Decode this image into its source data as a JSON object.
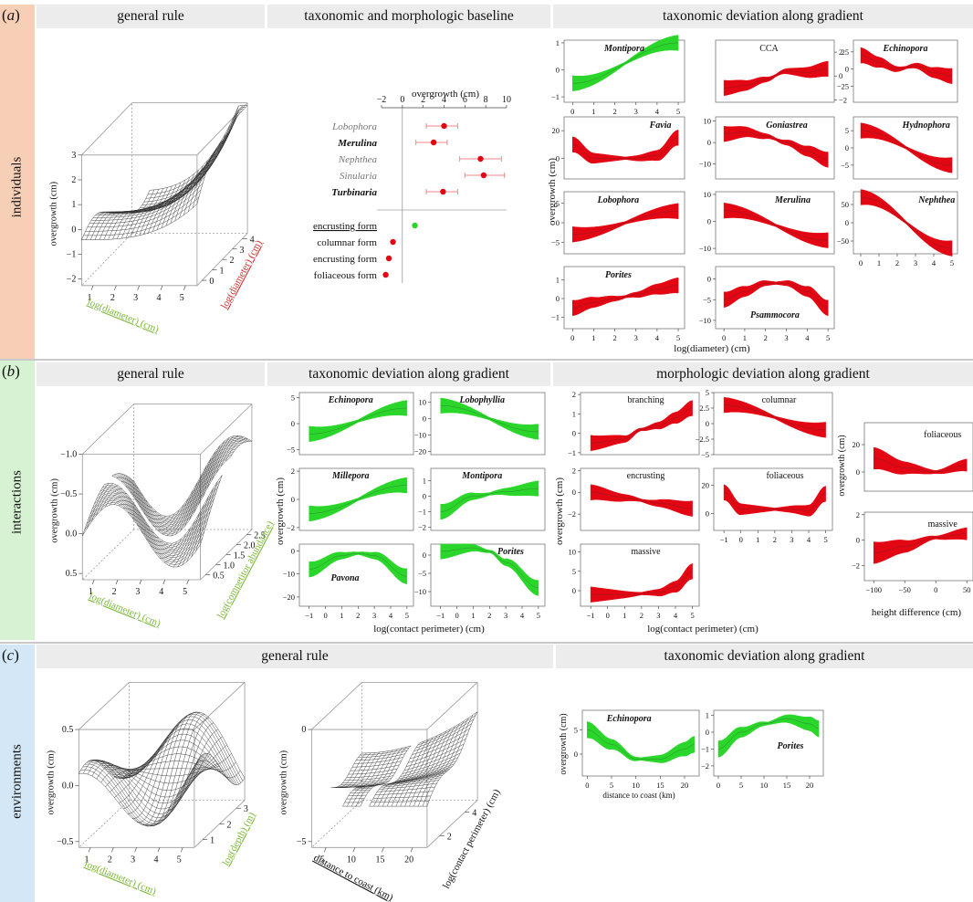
{
  "colors": {
    "panel_a": "#f6cfb6",
    "panel_b": "#d6f2d2",
    "panel_c": "#d3e7f6",
    "red": "#e30613",
    "green": "#2bd62b",
    "axis_green": "#7cb83a",
    "axis_red": "#cc2f2f"
  },
  "panels": {
    "a": {
      "label": "a",
      "row_title": "individuals",
      "headers": [
        "general rule",
        "taxonomic and morphologic baseline",
        "taxonomic deviation along gradient"
      ]
    },
    "b": {
      "label": "b",
      "row_title": "interactions",
      "headers": [
        "general rule",
        "taxonomic deviation along gradient",
        "morphologic deviation along gradient"
      ]
    },
    "c": {
      "label": "c",
      "row_title": "environments",
      "headers": [
        "general rule",
        "taxonomic deviation along gradient"
      ]
    }
  },
  "surfaces": {
    "a": {
      "z_label": "overgrowth (cm)",
      "x_label": "log(diameter) (cm)",
      "y_label": "log(diameter) (cm)",
      "z_ticks": [
        "3",
        "2",
        "1",
        "0",
        "−1",
        "−2"
      ],
      "x_ticks": [
        "1",
        "2",
        "3",
        "4",
        "5"
      ],
      "y_ticks": [
        "0",
        "1",
        "2",
        "3",
        "4"
      ]
    },
    "b": {
      "z_label": "overgrowth (cm)",
      "x_label": "log(diameter) (cm)",
      "y_label": "log(competitor abundance)",
      "z_ticks": [
        "−1.0",
        "−0.5",
        "0.0",
        "0.5"
      ],
      "x_ticks": [
        "1",
        "2",
        "3",
        "4",
        "5"
      ],
      "y_ticks": [
        "0.5",
        "1.0",
        "1.5",
        "2.0",
        "2.5"
      ]
    },
    "c1": {
      "z_label": "overgrowth (cm)",
      "x_label": "log(diameter) (cm)",
      "y_label": "log(depth) (m)",
      "z_ticks": [
        "0.5",
        "0.0",
        "−0.5"
      ],
      "x_ticks": [
        "1",
        "2",
        "3",
        "4",
        "5"
      ],
      "y_ticks": [
        "1",
        "2",
        "3"
      ]
    },
    "c2": {
      "z_label": "overgrowth (cm)",
      "x_label": "distance to coast (km)",
      "y_label": "log(contact perimeter) (cm)",
      "z_ticks": [
        "0",
        "−5"
      ],
      "x_ticks": [
        "5",
        "10",
        "15",
        "20"
      ],
      "y_ticks": [
        "2",
        "4"
      ]
    }
  },
  "baseline": {
    "xlabel": "overgrowth (cm)",
    "x_ticks": [
      "−2",
      "0",
      "2",
      "4",
      "6",
      "8",
      "10"
    ],
    "taxa": [
      {
        "label": "Lobophora",
        "value": 4,
        "lo": 2.3,
        "hi": 5.3,
        "style": "italic-gray"
      },
      {
        "label": "Merulina",
        "value": 3,
        "lo": 1.3,
        "hi": 4.3,
        "style": "italic-bold"
      },
      {
        "label": "Nephthea",
        "value": 7.5,
        "lo": 5.5,
        "hi": 9.5,
        "style": "italic-gray"
      },
      {
        "label": "Sinularia",
        "value": 7.8,
        "lo": 6.0,
        "hi": 9.8,
        "style": "italic-gray"
      },
      {
        "label": "Turbinaria",
        "value": 3.9,
        "lo": 2.3,
        "hi": 5.3,
        "style": "italic-bold"
      }
    ],
    "forms": [
      {
        "label": "encrusting form",
        "value": 1.2,
        "color": "green"
      },
      {
        "label": "columnar form",
        "value": -0.9,
        "color": "red"
      },
      {
        "label": "encrusting form",
        "value": -1.3,
        "color": "red"
      },
      {
        "label": "foliaceous form",
        "value": -1.6,
        "color": "red"
      }
    ]
  },
  "chart_data": [
    {
      "type": "area",
      "title": "individuals: taxonomic deviation along gradient",
      "xlabel": "log(diameter) (cm)",
      "ylabel": "overgrowth (cm)",
      "series": [
        {
          "name": "Montipora",
          "x": [
            0,
            5
          ],
          "y": [
            -0.5,
            1.0
          ],
          "ylim": [
            -1.2,
            1.1
          ]
        },
        {
          "name": "CCA",
          "x": [
            0,
            1,
            2,
            3,
            4,
            5
          ],
          "y": [
            -1.0,
            -0.8,
            -0.3,
            0.4,
            0.3,
            0.6
          ],
          "ylim": [
            -2.2,
            3.0
          ]
        },
        {
          "name": "Echinopora",
          "x": [
            0,
            1,
            2,
            3,
            4,
            5
          ],
          "y": [
            20,
            10,
            0,
            5,
            -5,
            -10
          ],
          "ylim": [
            -48,
            42
          ]
        },
        {
          "name": "Favia",
          "x": [
            0,
            1,
            2,
            3,
            4,
            5
          ],
          "y": [
            10,
            0,
            0,
            0,
            2,
            15
          ],
          "ylim": [
            -15,
            30
          ]
        },
        {
          "name": "Goniastrea",
          "x": [
            0,
            1,
            2,
            3,
            4,
            5
          ],
          "y": [
            4,
            5,
            3,
            0,
            -4,
            -8
          ],
          "ylim": [
            -17,
            12
          ]
        },
        {
          "name": "Hydnophora",
          "x": [
            0,
            5
          ],
          "y": [
            5,
            -5
          ],
          "ylim": [
            -9,
            9
          ]
        },
        {
          "name": "Lobophora",
          "x": [
            0,
            5
          ],
          "y": [
            -3,
            3
          ],
          "ylim": [
            -8,
            8
          ]
        },
        {
          "name": "Merulina",
          "x": [
            0,
            5
          ],
          "y": [
            4,
            -7
          ],
          "ylim": [
            -12,
            11
          ]
        },
        {
          "name": "Nephthea",
          "x": [
            0,
            5
          ],
          "y": [
            70,
            -70
          ],
          "ylim": [
            -85,
            85
          ]
        },
        {
          "name": "Porites",
          "x": [
            0,
            1,
            2,
            3,
            4,
            5
          ],
          "y": [
            -0.5,
            -0.2,
            0.0,
            0.2,
            0.5,
            0.7
          ],
          "ylim": [
            -1.6,
            1.7
          ]
        },
        {
          "name": "Psammocora",
          "x": [
            0,
            1,
            2,
            3,
            4,
            5
          ],
          "y": [
            -5,
            -3,
            -1,
            -1,
            -3,
            -7
          ],
          "ylim": [
            -12,
            3
          ]
        }
      ]
    },
    {
      "type": "area",
      "title": "interactions: taxonomic deviation along gradient",
      "xlabel": "log(contact perimeter) (cm)",
      "ylabel": "overgrowth (cm)",
      "series": [
        {
          "name": "Echinopora",
          "x": [
            -1,
            5
          ],
          "y": [
            -2,
            3
          ],
          "ylim": [
            -6,
            6
          ]
        },
        {
          "name": "Lobophyllia",
          "x": [
            -1,
            5
          ],
          "y": [
            8,
            -8
          ],
          "ylim": [
            -22,
            16
          ]
        },
        {
          "name": "Millepora",
          "x": [
            -1,
            5
          ],
          "y": [
            -1.0,
            1.0
          ],
          "ylim": [
            -2.2,
            2.2
          ]
        },
        {
          "name": "Montipora",
          "x": [
            -1,
            1,
            3,
            5
          ],
          "y": [
            -1.0,
            0.0,
            0.3,
            0.5
          ],
          "ylim": [
            -2.2,
            1.8
          ]
        },
        {
          "name": "Pavona",
          "x": [
            -1,
            1,
            2,
            3,
            5
          ],
          "y": [
            -8,
            -2,
            -1,
            -2,
            -11
          ],
          "ylim": [
            -24,
            3
          ]
        },
        {
          "name": "Porites",
          "x": [
            -1,
            1,
            2,
            3,
            5
          ],
          "y": [
            1,
            2,
            1,
            -2,
            -9
          ],
          "ylim": [
            -14,
            3
          ]
        }
      ]
    },
    {
      "type": "area",
      "title": "interactions: morphologic deviation along gradient",
      "xlabel": "log(contact perimeter) (cm)",
      "ylabel": "overgrowth (cm)",
      "series": [
        {
          "name": "branching",
          "x": [
            -1,
            1,
            2,
            3,
            4,
            5
          ],
          "y": [
            -0.5,
            -0.3,
            0.2,
            0.4,
            0.8,
            1.3
          ],
          "ylim": [
            -1.1,
            2.1
          ]
        },
        {
          "name": "columnar",
          "x": [
            -1,
            5
          ],
          "y": [
            3,
            -1
          ],
          "ylim": [
            -5,
            5
          ]
        },
        {
          "name": "encrusting",
          "x": [
            -1,
            1,
            3,
            5
          ],
          "y": [
            0,
            -0.5,
            -1,
            -1.5
          ],
          "ylim": [
            -3.5,
            2.2
          ]
        },
        {
          "name": "foliaceous",
          "x": [
            -1,
            0,
            2,
            3,
            4,
            5
          ],
          "y": [
            15,
            3,
            3,
            3,
            2,
            14
          ],
          "ylim": [
            -12,
            32
          ]
        },
        {
          "name": "massive",
          "x": [
            -1,
            1,
            3,
            4,
            5
          ],
          "y": [
            -1,
            -1,
            -0.5,
            1,
            5
          ],
          "ylim": [
            -4,
            12
          ]
        }
      ]
    },
    {
      "type": "area",
      "title": "interactions: morphologic deviation by height difference",
      "xlabel": "height difference (cm)",
      "ylabel": "overgrowth (cm)",
      "series": [
        {
          "name": "foliaceous",
          "x": [
            -100,
            -50,
            0,
            50
          ],
          "y": [
            10,
            3,
            0,
            5
          ],
          "ylim": [
            -14,
            36
          ]
        },
        {
          "name": "massive",
          "x": [
            -100,
            -50,
            0,
            50
          ],
          "y": [
            -1,
            -0.5,
            0.2,
            0.5
          ],
          "ylim": [
            -3.2,
            2.2
          ]
        }
      ]
    },
    {
      "type": "area",
      "title": "environments: taxonomic deviation along gradient",
      "xlabel": "distance to coast (km)",
      "ylabel": "overgrowth (cm)",
      "series": [
        {
          "name": "Echinopora",
          "x": [
            0,
            5,
            10,
            15,
            20,
            22
          ],
          "y": [
            5,
            2,
            -1,
            -1,
            1,
            2
          ],
          "ylim": [
            -4.5,
            9
          ]
        },
        {
          "name": "Porites",
          "x": [
            0,
            5,
            10,
            15,
            20,
            22
          ],
          "y": [
            -1,
            0,
            0.5,
            0.8,
            0.5,
            0.2
          ],
          "ylim": [
            -2.6,
            1.3
          ]
        }
      ]
    }
  ]
}
